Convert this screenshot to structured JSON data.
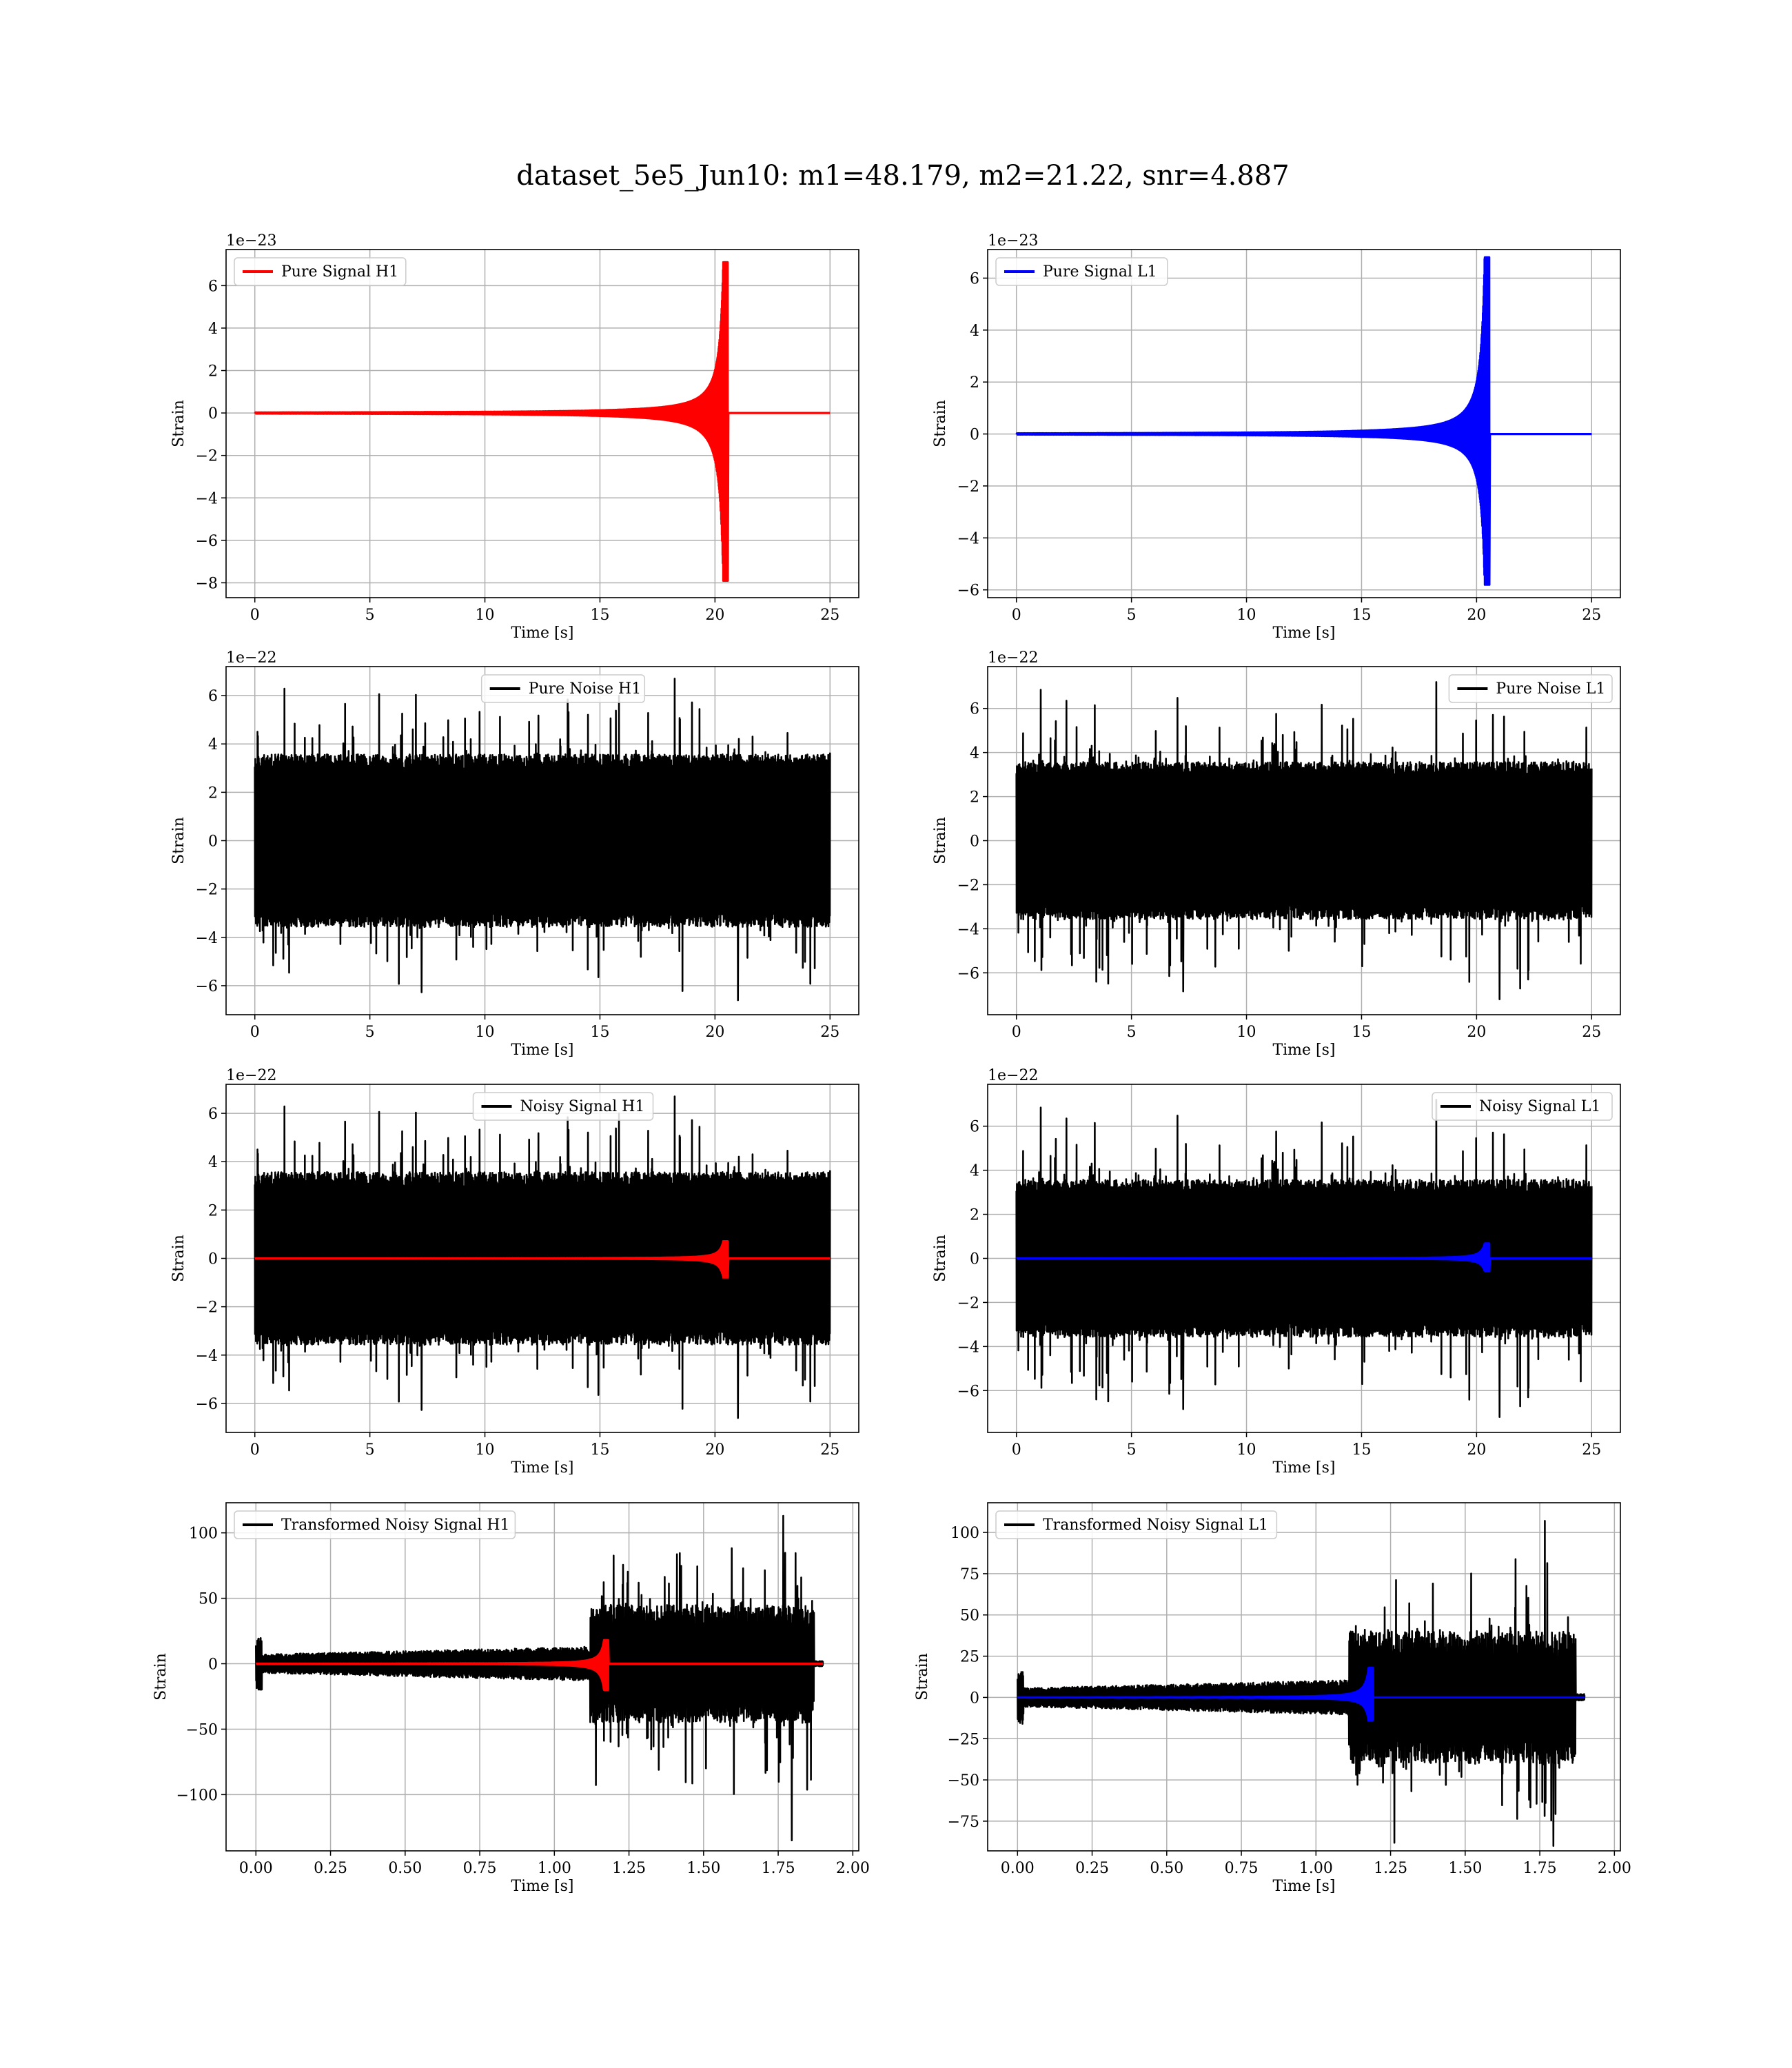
{
  "figure": {
    "title": "dataset_5e5_Jun10: m1=48.179, m2=21.22, snr=4.887"
  },
  "chart_data": [
    {
      "type": "line",
      "title": "",
      "xlabel": "Time [s]",
      "ylabel": "Strain",
      "y_offset_label": "1e−23",
      "xlim": [
        -1.25,
        26.25
      ],
      "ylim": [
        -8.7,
        7.7
      ],
      "xticks": [
        0,
        5,
        10,
        15,
        20,
        25
      ],
      "xtick_labels": [
        "0",
        "5",
        "10",
        "15",
        "20",
        "25"
      ],
      "yticks": [
        -8,
        -6,
        -4,
        -2,
        0,
        2,
        4,
        6
      ],
      "ytick_labels": [
        "−8",
        "−6",
        "−4",
        "−2",
        "0",
        "2",
        "4",
        "6"
      ],
      "grid": true,
      "legend": "upper-left",
      "series": [
        {
          "name": "Pure Signal H1",
          "color": "#ff0000",
          "kind": "chirp",
          "t_start": 0,
          "t_end": 25,
          "t_merge": 20.55,
          "peak_pos": 7.1,
          "peak_neg": -7.9,
          "env_at_19": 0.6,
          "env_at_20": 2.2
        }
      ]
    },
    {
      "type": "line",
      "title": "",
      "xlabel": "Time [s]",
      "ylabel": "Strain",
      "y_offset_label": "1e−23",
      "xlim": [
        -1.25,
        26.25
      ],
      "ylim": [
        -6.3,
        7.1
      ],
      "xticks": [
        0,
        5,
        10,
        15,
        20,
        25
      ],
      "xtick_labels": [
        "0",
        "5",
        "10",
        "15",
        "20",
        "25"
      ],
      "yticks": [
        -6,
        -4,
        -2,
        0,
        2,
        4,
        6
      ],
      "ytick_labels": [
        "−6",
        "−4",
        "−2",
        "0",
        "2",
        "4",
        "6"
      ],
      "grid": true,
      "legend": "upper-left",
      "series": [
        {
          "name": "Pure Signal L1",
          "color": "#0000ff",
          "kind": "chirp",
          "t_start": 0,
          "t_end": 25,
          "t_merge": 20.55,
          "peak_pos": 6.8,
          "peak_neg": -5.8,
          "env_at_19": 0.6,
          "env_at_20": 2.0
        }
      ]
    },
    {
      "type": "line",
      "title": "",
      "xlabel": "Time [s]",
      "ylabel": "Strain",
      "y_offset_label": "1e−22",
      "xlim": [
        -1.25,
        26.25
      ],
      "ylim": [
        -7.2,
        7.2
      ],
      "xticks": [
        0,
        5,
        10,
        15,
        20,
        25
      ],
      "xtick_labels": [
        "0",
        "5",
        "10",
        "15",
        "20",
        "25"
      ],
      "yticks": [
        -6,
        -4,
        -2,
        0,
        2,
        4,
        6
      ],
      "ytick_labels": [
        "−6",
        "−4",
        "−2",
        "0",
        "2",
        "4",
        "6"
      ],
      "grid": true,
      "legend": "upper-center",
      "series": [
        {
          "name": "Pure Noise H1",
          "color": "#000000",
          "kind": "noise",
          "t_start": 0,
          "t_end": 25,
          "band": 3.4,
          "max_spike": 6.7,
          "min_spike": -6.6,
          "seed": 11
        }
      ]
    },
    {
      "type": "line",
      "title": "",
      "xlabel": "Time [s]",
      "ylabel": "Strain",
      "y_offset_label": "1e−22",
      "xlim": [
        -1.25,
        26.25
      ],
      "ylim": [
        -7.9,
        7.9
      ],
      "xticks": [
        0,
        5,
        10,
        15,
        20,
        25
      ],
      "xtick_labels": [
        "0",
        "5",
        "10",
        "15",
        "20",
        "25"
      ],
      "yticks": [
        -6,
        -4,
        -2,
        0,
        2,
        4,
        6
      ],
      "ytick_labels": [
        "−6",
        "−4",
        "−2",
        "0",
        "2",
        "4",
        "6"
      ],
      "grid": true,
      "legend": "upper-right",
      "series": [
        {
          "name": "Pure Noise L1",
          "color": "#000000",
          "kind": "noise",
          "t_start": 0,
          "t_end": 25,
          "band": 3.4,
          "max_spike": 7.2,
          "min_spike": -7.2,
          "seed": 23
        }
      ]
    },
    {
      "type": "line",
      "title": "",
      "xlabel": "Time [s]",
      "ylabel": "Strain",
      "y_offset_label": "1e−22",
      "xlim": [
        -1.25,
        26.25
      ],
      "ylim": [
        -7.2,
        7.2
      ],
      "xticks": [
        0,
        5,
        10,
        15,
        20,
        25
      ],
      "xtick_labels": [
        "0",
        "5",
        "10",
        "15",
        "20",
        "25"
      ],
      "yticks": [
        -6,
        -4,
        -2,
        0,
        2,
        4,
        6
      ],
      "ytick_labels": [
        "−6",
        "−4",
        "−2",
        "0",
        "2",
        "4",
        "6"
      ],
      "grid": true,
      "legend": "upper-center",
      "series": [
        {
          "name": "Noisy Signal H1",
          "color": "#000000",
          "kind": "noise",
          "t_start": 0,
          "t_end": 25,
          "band": 3.4,
          "max_spike": 6.7,
          "min_spike": -6.6,
          "seed": 11
        },
        {
          "name": "",
          "color": "#ff0000",
          "kind": "chirp",
          "t_start": 0,
          "t_end": 25,
          "t_merge": 20.55,
          "peak_pos": 0.71,
          "peak_neg": -0.79,
          "env_at_19": 0.06,
          "env_at_20": 0.22
        }
      ]
    },
    {
      "type": "line",
      "title": "",
      "xlabel": "Time [s]",
      "ylabel": "Strain",
      "y_offset_label": "1e−22",
      "xlim": [
        -1.25,
        26.25
      ],
      "ylim": [
        -7.9,
        7.9
      ],
      "xticks": [
        0,
        5,
        10,
        15,
        20,
        25
      ],
      "xtick_labels": [
        "0",
        "5",
        "10",
        "15",
        "20",
        "25"
      ],
      "yticks": [
        -6,
        -4,
        -2,
        0,
        2,
        4,
        6
      ],
      "ytick_labels": [
        "−6",
        "−4",
        "−2",
        "0",
        "2",
        "4",
        "6"
      ],
      "grid": true,
      "legend": "upper-right",
      "series": [
        {
          "name": "Noisy Signal L1",
          "color": "#000000",
          "kind": "noise",
          "t_start": 0,
          "t_end": 25,
          "band": 3.4,
          "max_spike": 7.2,
          "min_spike": -7.2,
          "seed": 23
        },
        {
          "name": "",
          "color": "#0000ff",
          "kind": "chirp",
          "t_start": 0,
          "t_end": 25,
          "t_merge": 20.55,
          "peak_pos": 0.68,
          "peak_neg": -0.58,
          "env_at_19": 0.06,
          "env_at_20": 0.2
        }
      ]
    },
    {
      "type": "line",
      "title": "",
      "xlabel": "Time [s]",
      "ylabel": "Strain",
      "y_offset_label": "",
      "xlim": [
        -0.1,
        2.02
      ],
      "ylim": [
        -143,
        123
      ],
      "xticks": [
        0,
        0.25,
        0.5,
        0.75,
        1.0,
        1.25,
        1.5,
        1.75,
        2.0
      ],
      "xtick_labels": [
        "0.00",
        "0.25",
        "0.50",
        "0.75",
        "1.00",
        "1.25",
        "1.50",
        "1.75",
        "2.00"
      ],
      "yticks": [
        -100,
        -50,
        0,
        50,
        100
      ],
      "ytick_labels": [
        "−100",
        "−50",
        "0",
        "50",
        "100"
      ],
      "grid": true,
      "legend": "upper-left",
      "series": [
        {
          "name": "Transformed Noisy Signal H1",
          "color": "#000000",
          "kind": "transformed",
          "t_start": 0,
          "t_end": 1.9,
          "t_jump": 1.12,
          "t_cut": 1.87,
          "low_band": 10,
          "high_band": 45,
          "max_spike": 113,
          "min_spike": -135,
          "seed": 31
        },
        {
          "name": "",
          "color": "#ff0000",
          "kind": "chirp",
          "t_start": 0,
          "t_end": 1.9,
          "t_merge": 1.18,
          "peak_pos": 18,
          "peak_neg": -20,
          "env_at_19": 2,
          "env_at_20": 6,
          "scale_t": 0.0575
        }
      ]
    },
    {
      "type": "line",
      "title": "",
      "xlabel": "Time [s]",
      "ylabel": "Strain",
      "y_offset_label": "",
      "xlim": [
        -0.1,
        2.02
      ],
      "ylim": [
        -93,
        118
      ],
      "xticks": [
        0,
        0.25,
        0.5,
        0.75,
        1.0,
        1.25,
        1.5,
        1.75,
        2.0
      ],
      "xtick_labels": [
        "0.00",
        "0.25",
        "0.50",
        "0.75",
        "1.00",
        "1.25",
        "1.50",
        "1.75",
        "2.00"
      ],
      "yticks": [
        -75,
        -50,
        -25,
        0,
        25,
        50,
        75,
        100
      ],
      "ytick_labels": [
        "−75",
        "−50",
        "−25",
        "0",
        "25",
        "50",
        "75",
        "100"
      ],
      "grid": true,
      "legend": "upper-left",
      "series": [
        {
          "name": "Transformed Noisy Signal L1",
          "color": "#000000",
          "kind": "transformed",
          "t_start": 0,
          "t_end": 1.9,
          "t_jump": 1.11,
          "t_cut": 1.87,
          "low_band": 8,
          "high_band": 40,
          "max_spike": 107,
          "min_spike": -90,
          "seed": 47
        },
        {
          "name": "",
          "color": "#0000ff",
          "kind": "chirp",
          "t_start": 0,
          "t_end": 1.9,
          "t_merge": 1.19,
          "peak_pos": 18,
          "peak_neg": -14,
          "env_at_19": 2,
          "env_at_20": 6,
          "scale_t": 0.0575
        }
      ]
    }
  ]
}
